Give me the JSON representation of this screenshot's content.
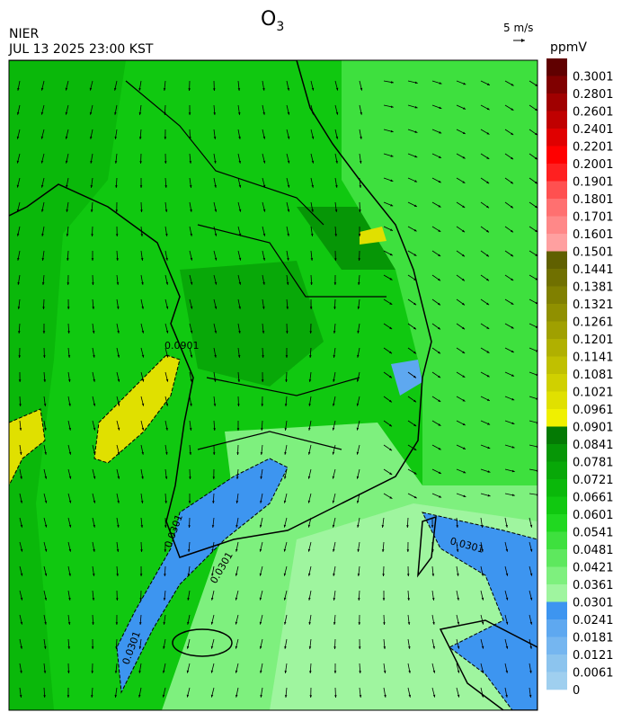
{
  "header": {
    "title": {
      "base": "O",
      "subscript": "3"
    },
    "agency": "NIER",
    "datetime": "JUL 13 2025 23:00 KST",
    "wind_scale": "5 m/s"
  },
  "colorbar": {
    "unit": "ppmV",
    "ticks": [
      0.3001,
      0.2801,
      0.2601,
      0.2401,
      0.2201,
      0.2001,
      0.1901,
      0.1801,
      0.1701,
      0.1601,
      0.1501,
      0.1441,
      0.1381,
      0.1321,
      0.1261,
      0.1201,
      0.1141,
      0.1081,
      0.1021,
      0.0961,
      0.0901,
      0.0841,
      0.0781,
      0.0721,
      0.0661,
      0.0601,
      0.0541,
      0.0481,
      0.0421,
      0.0361,
      0.0301,
      0.0241,
      0.0181,
      0.0121,
      0.0061,
      0
    ],
    "colors": [
      "#600000",
      "#800000",
      "#a00000",
      "#c00000",
      "#e00000",
      "#ff0000",
      "#ff2020",
      "#ff5050",
      "#ff7070",
      "#ff8888",
      "#ffa0a0",
      "#606000",
      "#707000",
      "#808000",
      "#909000",
      "#a0a000",
      "#b0b000",
      "#c0c000",
      "#d0d000",
      "#e0e000",
      "#f0f000",
      "#047a04",
      "#069606",
      "#08a808",
      "#0ab80a",
      "#10c810",
      "#20d820",
      "#3ee03e",
      "#5ee85e",
      "#7ef07e",
      "#9ff59f",
      "#3d95f0",
      "#5ea8f0",
      "#75b6f0",
      "#8cc4ee",
      "#9fcfef"
    ]
  },
  "contour_labels": [
    "0.0901",
    "0.0301",
    "0.0301",
    "0.0301",
    "0.0301"
  ]
}
